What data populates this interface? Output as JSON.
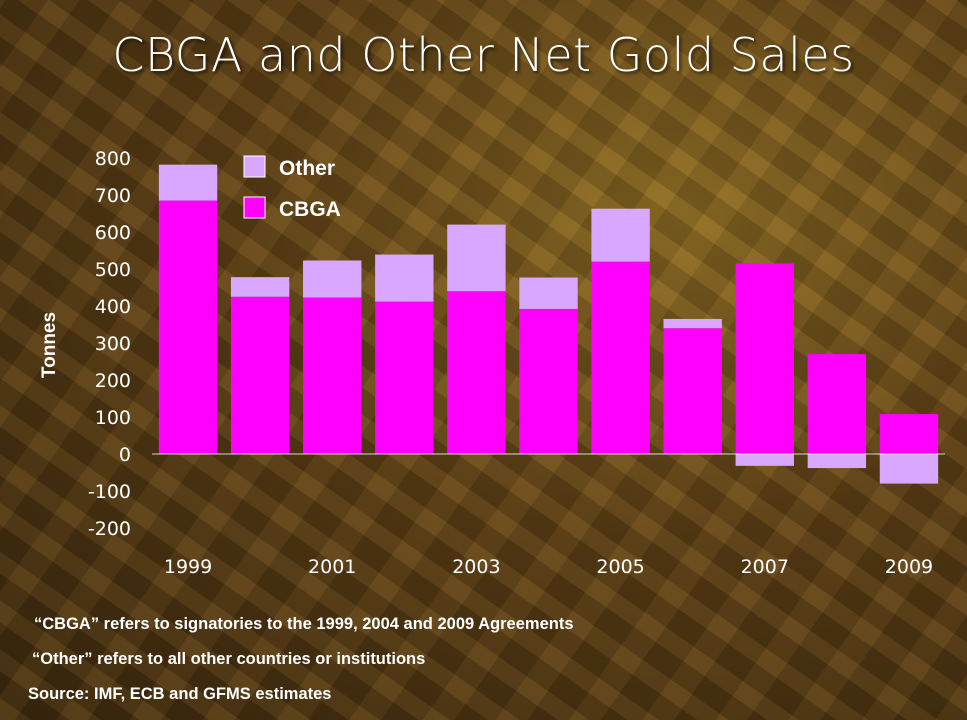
{
  "slide": {
    "title": "CBGA and Other Net Gold Sales"
  },
  "chart_data": {
    "type": "bar",
    "stacked": true,
    "categories": [
      "1999",
      "2000",
      "2001",
      "2002",
      "2003",
      "2004",
      "2005",
      "2006",
      "2007",
      "2008",
      "2009"
    ],
    "x_tick_labels": [
      "1999",
      "",
      "2001",
      "",
      "2003",
      "",
      "2005",
      "",
      "2007",
      "",
      "2009"
    ],
    "series": [
      {
        "name": "CBGA",
        "color": "#ff00ff",
        "values": [
          685,
          425,
          423,
          412,
          440,
          392,
          520,
          340,
          515,
          270,
          108
        ]
      },
      {
        "name": "Other",
        "color": "#d9a7ff",
        "values": [
          97,
          53,
          100,
          127,
          180,
          85,
          143,
          25,
          -32,
          -38,
          -80
        ]
      }
    ],
    "legend_order": [
      "Other",
      "CBGA"
    ],
    "legend_position": "top-left",
    "ylabel": "Tonnes",
    "xlabel": "",
    "ylim": [
      -200,
      800
    ],
    "yticks": [
      800,
      700,
      600,
      500,
      400,
      300,
      200,
      100,
      0,
      -100,
      -200
    ],
    "grid": false
  },
  "notes": [
    "“CBGA” refers to signatories to the 1999, 2004 and 2009 Agreements",
    "“Other” refers to all other countries or institutions",
    "Source: IMF, ECB and GFMS estimates"
  ]
}
